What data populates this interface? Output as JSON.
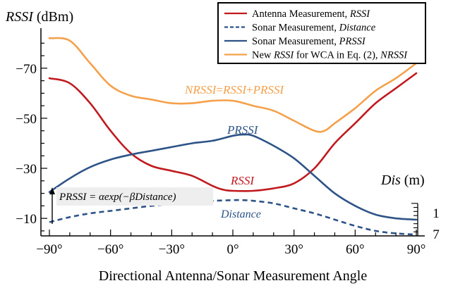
{
  "chart_data": {
    "type": "line",
    "ylabel_main": "RSSI",
    "ylabel_unit": " (dBm)",
    "xlabel": "Directional Antenna/Sonar Measurement Angle",
    "right_axis_label_main": "Dis",
    "right_axis_label_unit": " (m)",
    "xlim": [
      -90,
      90
    ],
    "ylim": [
      -3,
      -86
    ],
    "x_ticks": [
      -90,
      -60,
      -30,
      0,
      30,
      60,
      90
    ],
    "x_tick_labels": [
      "−90°",
      "−60°",
      "−30°",
      "0°",
      "30°",
      "60°",
      "90°"
    ],
    "y_ticks": [
      -70,
      -50,
      -30,
      -10
    ],
    "y_tick_labels": [
      "−70",
      "−50",
      "−30",
      "−10"
    ],
    "right_tick_labels": [
      {
        "value": 1,
        "y_on_left_axis": -12
      },
      {
        "value": 7,
        "y_on_left_axis": -3.5
      }
    ],
    "legend": {
      "position": "top-right",
      "entries": [
        {
          "label": "Antenna Measurement, ",
          "italic": "RSSI",
          "color": "#c01a1f",
          "dash": false
        },
        {
          "label": "Sonar Measurement, ",
          "italic": "Distance",
          "color": "#2e5487",
          "dash": true
        },
        {
          "label": "Sonar Measurement, ",
          "italic": "PRSSI",
          "color": "#2e5487",
          "dash": false
        },
        {
          "label": "New ",
          "italic": "RSSI",
          "label_tail": " for WCA in Eq. (2), ",
          "italic_tail": "NRSSI",
          "color": "#f5a04a",
          "dash": false
        }
      ]
    },
    "series": [
      {
        "name": "NRSSI",
        "color": "#f5a04a",
        "dash": false,
        "x": [
          -90,
          -80,
          -70,
          -60,
          -50,
          -40,
          -30,
          -20,
          -10,
          0,
          10,
          20,
          30,
          40,
          45,
          50,
          60,
          70,
          80,
          90
        ],
        "y": [
          -82,
          -81,
          -72,
          -63,
          -59,
          -57.5,
          -56,
          -56,
          -57,
          -57,
          -55,
          -53,
          -49,
          -45,
          -45,
          -48,
          -54,
          -61,
          -66,
          -72
        ]
      },
      {
        "name": "RSSI",
        "color": "#c01a1f",
        "dash": false,
        "x": [
          -90,
          -80,
          -70,
          -60,
          -50,
          -40,
          -30,
          -20,
          -10,
          -5,
          0,
          10,
          20,
          30,
          40,
          50,
          60,
          70,
          80,
          90
        ],
        "y": [
          -66,
          -64,
          -56,
          -45,
          -36,
          -31,
          -29,
          -27,
          -23,
          -21.5,
          -21,
          -21,
          -22,
          -24,
          -30,
          -40,
          -48,
          -56,
          -62,
          -68
        ]
      },
      {
        "name": "PRSSI",
        "color": "#2e5487",
        "dash": false,
        "x": [
          -90,
          -80,
          -70,
          -60,
          -50,
          -40,
          -30,
          -20,
          -10,
          0,
          5,
          10,
          20,
          30,
          40,
          50,
          60,
          70,
          80,
          90
        ],
        "y": [
          -20.5,
          -26,
          -30.5,
          -33.5,
          -35.5,
          -37,
          -38.5,
          -40,
          -41,
          -43,
          -43.5,
          -43,
          -39,
          -34,
          -27,
          -20,
          -15,
          -11.5,
          -10,
          -9.5
        ]
      },
      {
        "name": "Distance",
        "color": "#2e5487",
        "dash": true,
        "x": [
          -90,
          -80,
          -70,
          -60,
          -50,
          -40,
          -30,
          -20,
          -10,
          0,
          5,
          10,
          20,
          30,
          40,
          50,
          60,
          70,
          80,
          90
        ],
        "y": [
          -8.5,
          -10.5,
          -12,
          -13,
          -14,
          -15,
          -15.8,
          -16.5,
          -17,
          -17.3,
          -17.3,
          -17,
          -16,
          -14,
          -12,
          -9.5,
          -7,
          -5,
          -4,
          -3.5
        ]
      }
    ],
    "annotations": {
      "nrssi_eq": {
        "a": "NRSSI",
        "eq": "=",
        "b": "RSSI",
        "plus": "+",
        "c": "PRSSI",
        "color": "#f5a04a"
      },
      "prssi_label": {
        "text": "PRSSI",
        "color": "#2e5487"
      },
      "rssi_label": {
        "text": "RSSI",
        "color": "#c01a1f"
      },
      "distance_label": {
        "text": "Distance",
        "color": "#2e5487"
      },
      "prssi_formula": {
        "lhs": "PRSSI",
        "rest": " = αexp(−βDistance)"
      }
    }
  }
}
